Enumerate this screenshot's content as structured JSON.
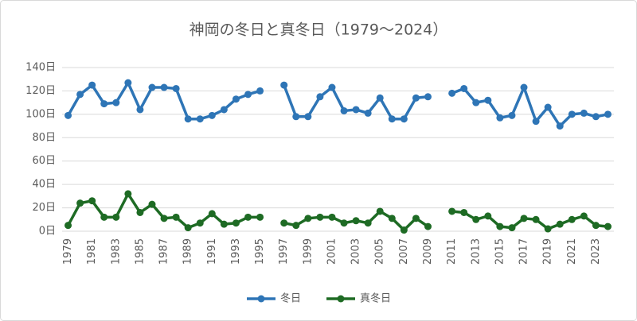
{
  "chart_data": {
    "type": "line",
    "title": "神岡の冬日と真冬日（1979～2024）",
    "categories": [
      "1979",
      null,
      "1981",
      null,
      "1983",
      null,
      "1985",
      null,
      "1987",
      null,
      "1989",
      null,
      "1991",
      null,
      "1993",
      null,
      "1995",
      null,
      "1997",
      null,
      "1999",
      null,
      "2001",
      null,
      "2003",
      null,
      "2005",
      null,
      "2007",
      null,
      "2009",
      null,
      "2011",
      null,
      "2013",
      null,
      "2015",
      null,
      "2017",
      null,
      "2019",
      null,
      "2021",
      null,
      "2023",
      null
    ],
    "series": [
      {
        "name": "冬日",
        "color": "#2e75b6",
        "values": [
          99,
          117,
          125,
          109,
          110,
          127,
          104,
          123,
          123,
          122,
          96,
          96,
          99,
          104,
          113,
          117,
          120,
          null,
          125,
          98,
          98,
          115,
          123,
          103,
          104,
          101,
          114,
          96,
          96,
          114,
          115,
          null,
          118,
          122,
          110,
          112,
          97,
          99,
          123,
          94,
          106,
          90,
          100,
          101,
          98,
          100
        ]
      },
      {
        "name": "真冬日",
        "color": "#1e6b24",
        "values": [
          5,
          24,
          26,
          12,
          12,
          32,
          16,
          23,
          11,
          12,
          3,
          7,
          15,
          6,
          7,
          12,
          12,
          null,
          7,
          5,
          11,
          12,
          12,
          7,
          9,
          7,
          17,
          11,
          1,
          11,
          4,
          null,
          17,
          16,
          10,
          13,
          4,
          3,
          11,
          10,
          2,
          6,
          10,
          13,
          5,
          4
        ]
      }
    ],
    "ylim": [
      0,
      140
    ],
    "yticks": [
      {
        "value": 0,
        "label": "0日"
      },
      {
        "value": 20,
        "label": "20日"
      },
      {
        "value": 40,
        "label": "40日"
      },
      {
        "value": 60,
        "label": "60日"
      },
      {
        "value": 80,
        "label": "80日"
      },
      {
        "value": 100,
        "label": "100日"
      },
      {
        "value": 120,
        "label": "120日"
      },
      {
        "value": 140,
        "label": "140日"
      }
    ],
    "grid": true,
    "legend": "bottom"
  }
}
